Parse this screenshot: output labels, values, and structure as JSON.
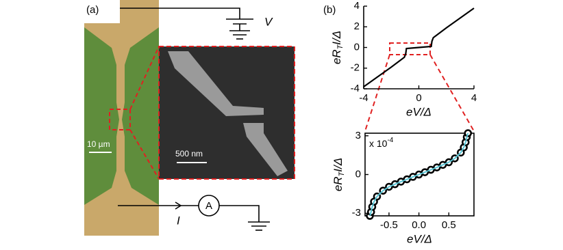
{
  "panel_a": {
    "label": "(a)",
    "voltage": "V",
    "ammeter": "A",
    "current": "I",
    "scale_photo": "10 µm",
    "scale_inset": "500 nm"
  },
  "chart_data": [
    {
      "type": "line",
      "panel": "(b)",
      "xlabel": "eV/Δ",
      "ylabel": [
        "eR",
        "T",
        "I/Δ"
      ],
      "x": [
        -4,
        -3,
        -2,
        -1.3,
        -1.05,
        -0.95,
        -0.9,
        0,
        0.9,
        0.95,
        1.05,
        1.3,
        2,
        3,
        4
      ],
      "series": [
        {
          "color": "#000000",
          "values": [
            -3.8,
            -2.85,
            -1.9,
            -1.2,
            -0.95,
            -0.6,
            -0.1,
            0,
            0.1,
            0.6,
            0.95,
            1.2,
            1.9,
            2.85,
            3.8
          ]
        }
      ],
      "xlim": [
        -4,
        4
      ],
      "ylim": [
        -4,
        4
      ],
      "xticks": [
        -4,
        0,
        4
      ],
      "yticks": [
        -4,
        -2,
        0,
        2,
        4
      ]
    },
    {
      "type": "scatter",
      "xlabel": "eV/Δ",
      "ylabel": [
        "eR",
        "T",
        "I/Δ"
      ],
      "multiplier": [
        "x 10",
        "-4"
      ],
      "x": [
        -0.82,
        -0.8,
        -0.78,
        -0.75,
        -0.7,
        -0.6,
        -0.5,
        -0.4,
        -0.3,
        -0.2,
        -0.1,
        0,
        0.1,
        0.2,
        0.3,
        0.4,
        0.5,
        0.6,
        0.7,
        0.75,
        0.78,
        0.8,
        0.82
      ],
      "series": [
        {
          "color": "#000000",
          "values": [
            -3.2,
            -2.9,
            -2.5,
            -2.1,
            -1.7,
            -1.25,
            -0.95,
            -0.75,
            -0.55,
            -0.37,
            -0.18,
            0,
            0.18,
            0.37,
            0.55,
            0.75,
            0.95,
            1.25,
            1.7,
            2.1,
            2.5,
            2.9,
            3.2
          ]
        },
        {
          "color": "#5bc8d8",
          "values": [
            -3.2,
            -2.9,
            -2.5,
            -2.1,
            -1.7,
            -1.25,
            -0.95,
            -0.75,
            -0.55,
            -0.37,
            -0.18,
            0,
            0.18,
            0.37,
            0.55,
            0.75,
            0.95,
            1.25,
            1.7,
            2.1,
            2.5,
            2.9,
            3.2
          ]
        }
      ],
      "xlim": [
        -0.9,
        0.92
      ],
      "ylim": [
        -3.2,
        3.2
      ],
      "xticks": [
        {
          "value": -0.5,
          "label": "-0.5"
        },
        {
          "value": 0,
          "label": "0.0"
        },
        {
          "value": 0.5,
          "label": "0.5"
        }
      ],
      "yticks": [
        -3,
        0,
        3
      ]
    }
  ]
}
